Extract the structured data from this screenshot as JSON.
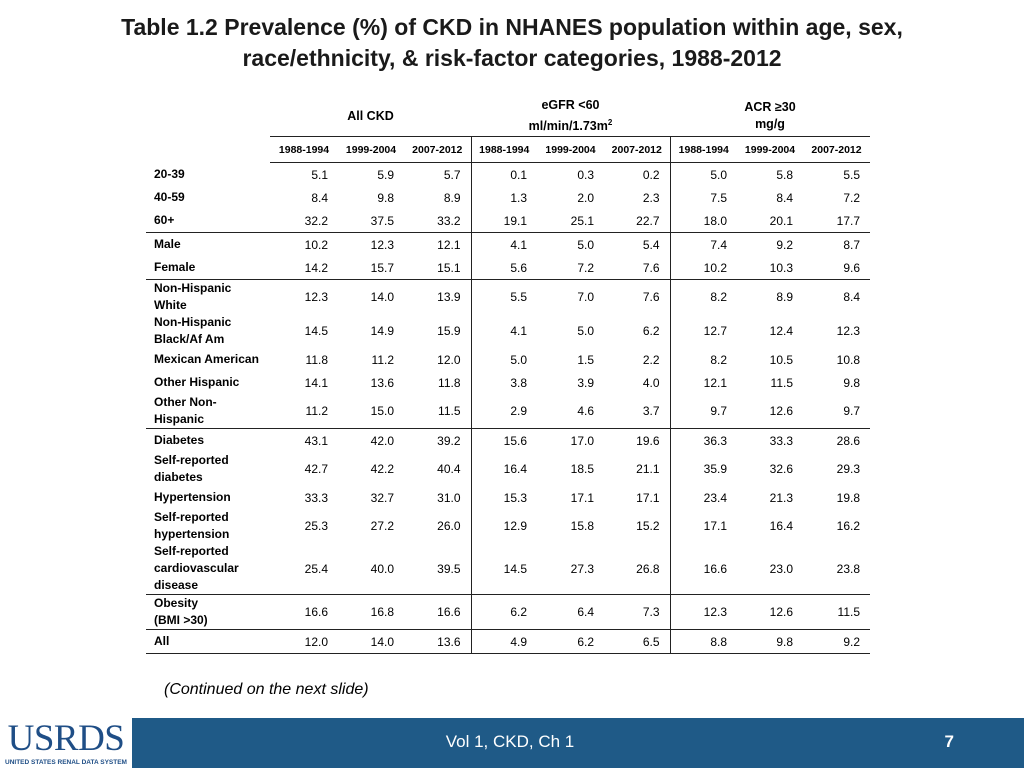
{
  "title": {
    "line1": "Table 1.2 Prevalence (%) of CKD in NHANES population within age, sex,",
    "line2": "race/ethnicity, & risk-factor categories, 1988-2012"
  },
  "table": {
    "groups": {
      "all_ckd": "All CKD",
      "egfr_line1": "eGFR <60",
      "egfr_line2": "ml/min/1.73m",
      "egfr_sup": "2",
      "acr_line1": "ACR ≥30",
      "acr_line2": "mg/g"
    },
    "years": [
      "1988-1994",
      "1999-2004",
      "2007-2012",
      "1988-1994",
      "1999-2004",
      "2007-2012",
      "1988-1994",
      "1999-2004",
      "2007-2012"
    ],
    "rows": [
      {
        "label": [
          "20-39"
        ],
        "values": [
          "5.1",
          "5.9",
          "5.7",
          "0.1",
          "0.3",
          "0.2",
          "5.0",
          "5.8",
          "5.5"
        ]
      },
      {
        "label": [
          "40-59"
        ],
        "values": [
          "8.4",
          "9.8",
          "8.9",
          "1.3",
          "2.0",
          "2.3",
          "7.5",
          "8.4",
          "7.2"
        ]
      },
      {
        "label": [
          "60+"
        ],
        "values": [
          "32.2",
          "37.5",
          "33.2",
          "19.1",
          "25.1",
          "22.7",
          "18.0",
          "20.1",
          "17.7"
        ]
      },
      {
        "label": [
          "Male"
        ],
        "values": [
          "10.2",
          "12.3",
          "12.1",
          "4.1",
          "5.0",
          "5.4",
          "7.4",
          "9.2",
          "8.7"
        ]
      },
      {
        "label": [
          "Female"
        ],
        "values": [
          "14.2",
          "15.7",
          "15.1",
          "5.6",
          "7.2",
          "7.6",
          "10.2",
          "10.3",
          "9.6"
        ]
      },
      {
        "label": [
          "Non-Hispanic",
          "White"
        ],
        "values": [
          "12.3",
          "14.0",
          "13.9",
          "5.5",
          "7.0",
          "7.6",
          "8.2",
          "8.9",
          "8.4"
        ]
      },
      {
        "label": [
          "Non-Hispanic",
          "Black/Af Am"
        ],
        "values": [
          "14.5",
          "14.9",
          "15.9",
          "4.1",
          "5.0",
          "6.2",
          "12.7",
          "12.4",
          "12.3"
        ]
      },
      {
        "label": [
          "Mexican American"
        ],
        "values": [
          "11.8",
          "11.2",
          "12.0",
          "5.0",
          "1.5",
          "2.2",
          "8.2",
          "10.5",
          "10.8"
        ]
      },
      {
        "label": [
          "Other Hispanic"
        ],
        "values": [
          "14.1",
          "13.6",
          "11.8",
          "3.8",
          "3.9",
          "4.0",
          "12.1",
          "11.5",
          "9.8"
        ]
      },
      {
        "label": [
          "Other Non-",
          "Hispanic"
        ],
        "values": [
          "11.2",
          "15.0",
          "11.5",
          "2.9",
          "4.6",
          "3.7",
          "9.7",
          "12.6",
          "9.7"
        ]
      },
      {
        "label": [
          "Diabetes"
        ],
        "values": [
          "43.1",
          "42.0",
          "39.2",
          "15.6",
          "17.0",
          "19.6",
          "36.3",
          "33.3",
          "28.6"
        ]
      },
      {
        "label": [
          "Self-reported",
          "diabetes"
        ],
        "values": [
          "42.7",
          "42.2",
          "40.4",
          "16.4",
          "18.5",
          "21.1",
          "35.9",
          "32.6",
          "29.3"
        ]
      },
      {
        "label": [
          "Hypertension"
        ],
        "values": [
          "33.3",
          "32.7",
          "31.0",
          "15.3",
          "17.1",
          "17.1",
          "23.4",
          "21.3",
          "19.8"
        ]
      },
      {
        "label": [
          "Self-reported",
          "hypertension"
        ],
        "values": [
          "25.3",
          "27.2",
          "26.0",
          "12.9",
          "15.8",
          "15.2",
          "17.1",
          "16.4",
          "16.2"
        ]
      },
      {
        "label": [
          "Self-reported",
          "cardiovascular",
          "disease"
        ],
        "values": [
          "25.4",
          "40.0",
          "39.5",
          "14.5",
          "27.3",
          "26.8",
          "16.6",
          "23.0",
          "23.8"
        ]
      },
      {
        "label": [
          "Obesity",
          "(BMI >30)"
        ],
        "values": [
          "16.6",
          "16.8",
          "16.6",
          "6.2",
          "6.4",
          "7.3",
          "12.3",
          "12.6",
          "11.5"
        ]
      },
      {
        "label": [
          "All"
        ],
        "values": [
          "12.0",
          "14.0",
          "13.6",
          "4.9",
          "6.2",
          "6.5",
          "8.8",
          "9.8",
          "9.2"
        ]
      }
    ]
  },
  "note": "(Continued on the next slide)",
  "footer": {
    "logo_text": "USRDS",
    "logo_subtext": "UNITED STATES RENAL DATA SYSTEM",
    "center_text": "Vol 1, CKD, Ch 1",
    "page_number": "7"
  }
}
